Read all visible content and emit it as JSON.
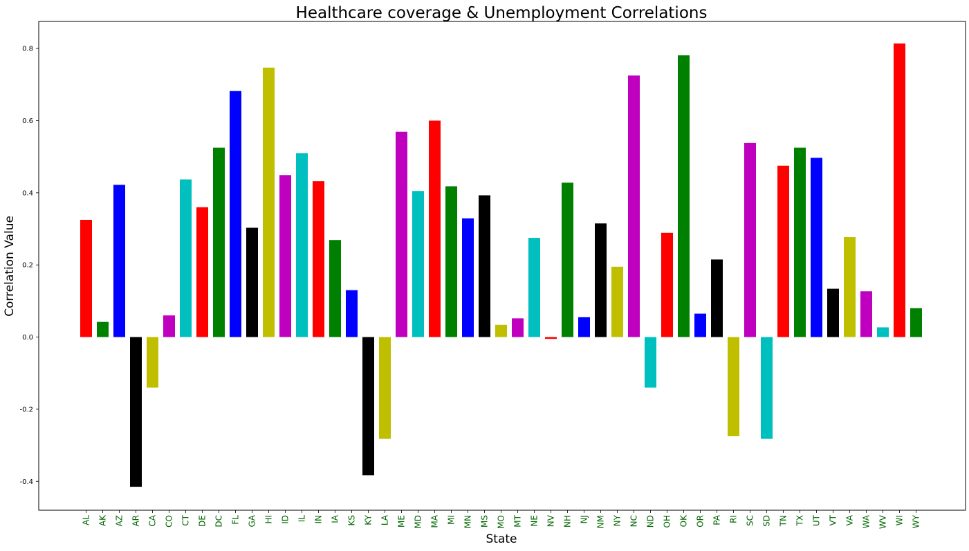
{
  "chart_data": {
    "type": "bar",
    "title": "Healthcare coverage & Unemployment Correlations",
    "xlabel": "State",
    "ylabel": "Correlation Value",
    "ylim": [
      -0.48,
      0.875
    ],
    "yticks": [
      -0.4,
      -0.2,
      0.0,
      0.2,
      0.4,
      0.6,
      0.8
    ],
    "ytick_labels": [
      "-0.4",
      "-0.2",
      "0.0",
      "0.2",
      "0.4",
      "0.6",
      "0.8"
    ],
    "grid": false,
    "legend": "none",
    "xtick_color": "#006400",
    "color_cycle": [
      "#ff0000",
      "#008000",
      "#0000ff",
      "#000000",
      "#bfbf00",
      "#bf00bf",
      "#00bfbf"
    ],
    "categories": [
      "AL",
      "AK",
      "AZ",
      "AR",
      "CA",
      "CO",
      "CT",
      "DE",
      "DC",
      "FL",
      "GA",
      "HI",
      "ID",
      "IL",
      "IN",
      "IA",
      "KS",
      "KY",
      "LA",
      "ME",
      "MD",
      "MA",
      "MI",
      "MN",
      "MS",
      "MO",
      "MT",
      "NE",
      "NV",
      "NH",
      "NJ",
      "NM",
      "NY",
      "NC",
      "ND",
      "OH",
      "OK",
      "OR",
      "PA",
      "RI",
      "SC",
      "SD",
      "TN",
      "TX",
      "UT",
      "VT",
      "VA",
      "WA",
      "WV",
      "WI",
      "WY"
    ],
    "values": [
      0.325,
      0.042,
      0.422,
      -0.415,
      -0.14,
      0.06,
      0.437,
      0.36,
      0.525,
      0.682,
      0.303,
      0.747,
      0.449,
      0.51,
      0.432,
      0.269,
      0.13,
      -0.383,
      -0.282,
      0.569,
      0.405,
      0.6,
      0.418,
      0.329,
      0.393,
      0.034,
      0.052,
      0.275,
      -0.005,
      0.428,
      0.055,
      0.315,
      0.195,
      0.725,
      -0.14,
      0.289,
      0.781,
      0.065,
      0.215,
      -0.275,
      0.538,
      -0.282,
      0.475,
      0.525,
      0.497,
      0.134,
      0.277,
      0.127,
      0.027,
      0.814,
      0.08
    ]
  }
}
